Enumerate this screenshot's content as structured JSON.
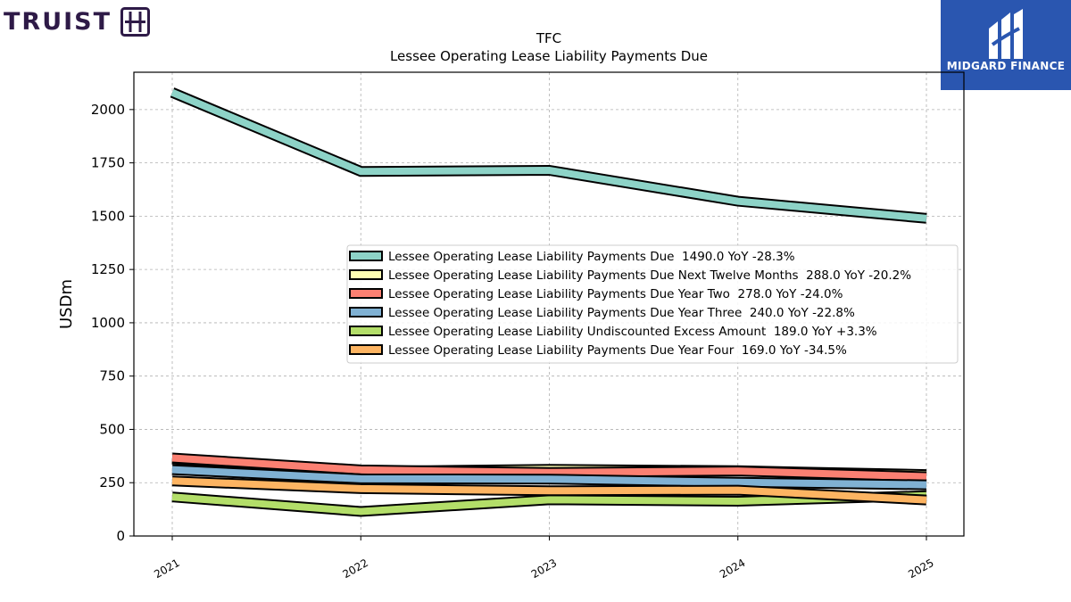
{
  "logos": {
    "left_brand": "TRUIST",
    "right_brand": "MIDGARD FINANCE"
  },
  "chart_data": {
    "type": "line",
    "title": "TFC",
    "subtitle": "Lessee Operating Lease Liability Payments Due",
    "xlabel": "",
    "ylabel": "USDm",
    "categories": [
      "2021",
      "2022",
      "2023",
      "2024",
      "2025"
    ],
    "ylim": [
      0,
      2175
    ],
    "yticks": [
      0,
      250,
      500,
      750,
      1000,
      1250,
      1500,
      1750,
      2000
    ],
    "grid": true,
    "legend_position": "center-right",
    "series": [
      {
        "name": "Lessee Operating Lease Liability Payments Due",
        "legend_label": "Lessee Operating Lease Liability Payments Due  1490.0 YoY -28.3%",
        "color": "#8dd3c7",
        "values": [
          2080,
          1710,
          1715,
          1570,
          1490
        ]
      },
      {
        "name": "Lessee Operating Lease Liability Payments Due Next Twelve Months",
        "legend_label": "Lessee Operating Lease Liability Payments Due Next Twelve Months  288.0 YoY -20.2%",
        "color": "#ffffb3",
        "values": [
          361,
          303,
          313,
          306,
          288
        ]
      },
      {
        "name": "Lessee Operating Lease Liability Payments Due Year Two",
        "legend_label": "Lessee Operating Lease Liability Payments Due Year Two  278.0 YoY -24.0%",
        "color": "#fb8072",
        "values": [
          366,
          310,
          298,
          305,
          278
        ]
      },
      {
        "name": "Lessee Operating Lease Liability Payments Due Year Three",
        "legend_label": "Lessee Operating Lease Liability Payments Due Year Three  240.0 YoY -22.8%",
        "color": "#80b1d3",
        "values": [
          311,
          268,
          267,
          252,
          240
        ]
      },
      {
        "name": "Lessee Operating Lease Liability Undiscounted Excess Amount",
        "legend_label": "Lessee Operating Lease Liability Undiscounted Excess Amount  189.0 YoY +3.3%",
        "color": "#b3de69",
        "values": [
          183,
          115,
          170,
          163,
          189
        ]
      },
      {
        "name": "Lessee Operating Lease Liability Payments Due Year Four",
        "legend_label": "Lessee Operating Lease Liability Payments Due Year Four  169.0 YoY -34.5%",
        "color": "#fdb462",
        "values": [
          258,
          222,
          212,
          215,
          169
        ]
      }
    ]
  }
}
